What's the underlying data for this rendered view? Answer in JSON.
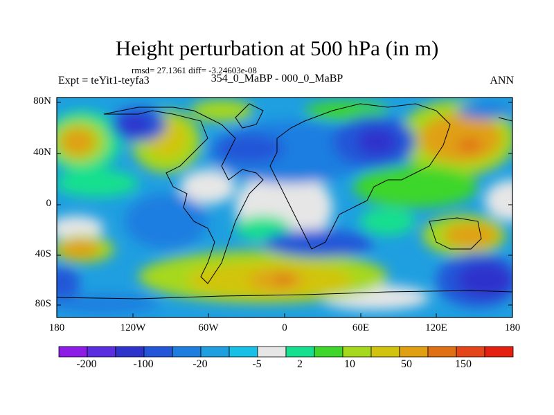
{
  "title": "Height perturbation at 500 hPa (in m)",
  "stats": "rmsd= 27.1361 diff= -3.24603e-08",
  "expt": "Expt = teYit1-teyfa3",
  "subtitle": "354_0_MaBP - 000_0_MaBP",
  "season": "ANN",
  "lat_labels": [
    "80N",
    "40N",
    "0",
    "40S",
    "80S"
  ],
  "lon_labels": [
    "180",
    "120W",
    "60W",
    "0",
    "60E",
    "120E",
    "180"
  ],
  "colorbar": {
    "colors": [
      "#8c1ce6",
      "#5a2ee0",
      "#2e33cc",
      "#2356d8",
      "#1e7ee0",
      "#1f9fe0",
      "#17c0e4",
      "#e6e6e6",
      "#16e08e",
      "#3ed62a",
      "#a6d81e",
      "#d2c40e",
      "#e0a012",
      "#e07014",
      "#e4461a",
      "#e62010"
    ],
    "labels": [
      "-200",
      "-100",
      "-20",
      "-5",
      "2",
      "10",
      "50",
      "150"
    ]
  }
}
